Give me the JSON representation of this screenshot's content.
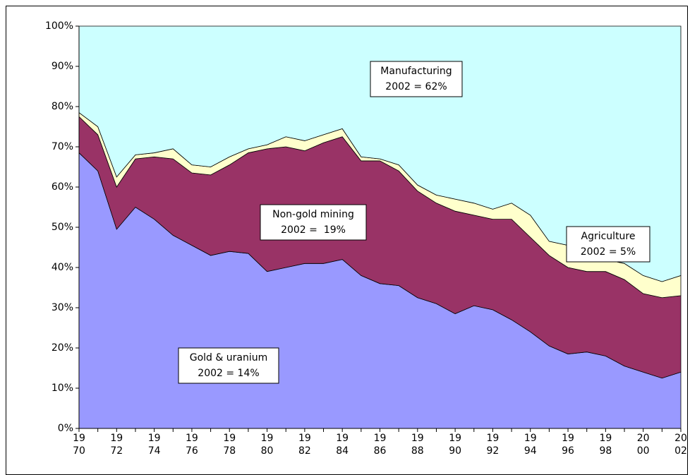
{
  "chart_data": {
    "type": "stacked_area",
    "x": [
      1970,
      1971,
      1972,
      1973,
      1974,
      1975,
      1976,
      1977,
      1978,
      1979,
      1980,
      1981,
      1982,
      1983,
      1984,
      1985,
      1986,
      1987,
      1988,
      1989,
      1990,
      1991,
      1992,
      1993,
      1994,
      1995,
      1996,
      1997,
      1998,
      1999,
      2000,
      2001,
      2002
    ],
    "xlim": [
      1970,
      2002
    ],
    "xticks": [
      {
        "value": 1970,
        "label": [
          "19",
          "70"
        ]
      },
      {
        "value": 1972,
        "label": [
          "19",
          "72"
        ]
      },
      {
        "value": 1974,
        "label": [
          "19",
          "74"
        ]
      },
      {
        "value": 1976,
        "label": [
          "19",
          "76"
        ]
      },
      {
        "value": 1978,
        "label": [
          "19",
          "78"
        ]
      },
      {
        "value": 1980,
        "label": [
          "19",
          "80"
        ]
      },
      {
        "value": 1982,
        "label": [
          "19",
          "82"
        ]
      },
      {
        "value": 1984,
        "label": [
          "19",
          "84"
        ]
      },
      {
        "value": 1986,
        "label": [
          "19",
          "86"
        ]
      },
      {
        "value": 1988,
        "label": [
          "19",
          "88"
        ]
      },
      {
        "value": 1990,
        "label": [
          "19",
          "90"
        ]
      },
      {
        "value": 1992,
        "label": [
          "19",
          "92"
        ]
      },
      {
        "value": 1994,
        "label": [
          "19",
          "94"
        ]
      },
      {
        "value": 1996,
        "label": [
          "19",
          "96"
        ]
      },
      {
        "value": 1998,
        "label": [
          "19",
          "98"
        ]
      },
      {
        "value": 2000,
        "label": [
          "20",
          "00"
        ]
      },
      {
        "value": 2002,
        "label": [
          "20",
          "02"
        ]
      }
    ],
    "ylim": [
      0,
      100
    ],
    "yticks": [
      {
        "value": 0,
        "label": "0%"
      },
      {
        "value": 10,
        "label": "10%"
      },
      {
        "value": 20,
        "label": "20%"
      },
      {
        "value": 30,
        "label": "30%"
      },
      {
        "value": 40,
        "label": "40%"
      },
      {
        "value": 50,
        "label": "50%"
      },
      {
        "value": 60,
        "label": "60%"
      },
      {
        "value": 70,
        "label": "70%"
      },
      {
        "value": 80,
        "label": "80%"
      },
      {
        "value": 90,
        "label": "90%"
      },
      {
        "value": 100,
        "label": "100%"
      }
    ],
    "series": [
      {
        "name": "Gold & uranium",
        "annotation": "2002 = 14%",
        "color": "#9999ff",
        "values": [
          68.5,
          64,
          49.5,
          55,
          52,
          48,
          45.5,
          43,
          44,
          43.5,
          39,
          40,
          41,
          41,
          42,
          38,
          36,
          35.5,
          32.5,
          31,
          28.5,
          30.5,
          29.5,
          27,
          24,
          20.5,
          18.5,
          19,
          18,
          15.5,
          14,
          12.5,
          14
        ]
      },
      {
        "name": "Non-gold mining",
        "annotation": "2002 =  19%",
        "color": "#993366",
        "values": [
          9,
          9,
          10.5,
          12,
          15.5,
          19,
          18,
          20,
          21.5,
          25,
          30.5,
          30,
          28,
          30,
          30.5,
          28.5,
          30.5,
          28.5,
          26.5,
          25,
          25.5,
          22.5,
          22.5,
          25,
          23.5,
          22.5,
          21.5,
          20,
          21,
          21.5,
          19.5,
          20,
          19
        ]
      },
      {
        "name": "Agriculture",
        "annotation": "2002 = 5%",
        "color": "#ffffcc",
        "values": [
          1,
          2,
          2.5,
          1,
          1,
          2.5,
          2,
          2,
          2,
          1,
          1,
          2.5,
          2.5,
          2,
          2,
          1,
          0.5,
          1.5,
          1.5,
          2,
          3,
          3,
          2.5,
          4,
          5.5,
          3.5,
          5.5,
          3.5,
          3,
          4,
          4.5,
          4,
          5
        ]
      },
      {
        "name": "Manufacturing",
        "annotation": "2002 = 62%",
        "color": "#ccffff",
        "values": [
          21.5,
          25,
          37.5,
          32,
          31.5,
          30.5,
          34.5,
          35,
          32.5,
          30.5,
          29.5,
          27.5,
          28.5,
          27,
          25.5,
          32.5,
          33,
          34.5,
          39.5,
          42,
          43,
          44,
          45.5,
          44,
          47,
          53.5,
          54.5,
          57.5,
          58,
          59,
          62,
          63.5,
          62
        ]
      }
    ]
  }
}
